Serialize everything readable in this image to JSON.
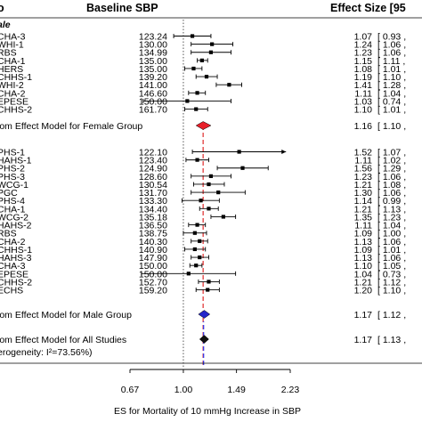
{
  "chart_data": {
    "type": "forest",
    "header": {
      "study": "o",
      "baseline": "Baseline SBP",
      "effect": "Effect Size [95"
    },
    "xlabel": "ES for Mortality of 10 mmHg Increase in SBP",
    "xticks": [
      "0.67",
      "1.00",
      "1.49",
      "2.23"
    ],
    "xtick_values": [
      0.67,
      1.0,
      1.49,
      2.23
    ],
    "log_scale": true,
    "reference_line": 1.0,
    "pooled_line": 1.16,
    "colors": {
      "female_diamond": "#e8202a",
      "male_diamond": "#2626c9",
      "overall_diamond": "#111111",
      "pooled_line": "#e23c3c",
      "pooled_line_alt": "#3a3ae8",
      "point": "#000000"
    },
    "groups": [
      {
        "label": "ale",
        "studies": [
          {
            "name": "CHA-3",
            "sbp": "123.24",
            "es": 1.07,
            "lo": 0.93,
            "hi": 1.23,
            "es_text": "1.07",
            "ci_text": "[ 0.93 ,"
          },
          {
            "name": "WHI-1",
            "sbp": "130.00",
            "es": 1.24,
            "lo": 1.06,
            "hi": 1.45,
            "es_text": "1.24",
            "ci_text": "[ 1.06 ,"
          },
          {
            "name": "RBS",
            "sbp": "134.99",
            "es": 1.23,
            "lo": 1.06,
            "hi": 1.43,
            "es_text": "1.23",
            "ci_text": "[ 1.06 ,"
          },
          {
            "name": "CHA-1",
            "sbp": "135.00",
            "es": 1.15,
            "lo": 1.11,
            "hi": 1.2,
            "es_text": "1.15",
            "ci_text": "[ 1.11 ,"
          },
          {
            "name": "HERS",
            "sbp": "135.00",
            "es": 1.08,
            "lo": 1.01,
            "hi": 1.15,
            "es_text": "1.08",
            "ci_text": "[ 1.01 ,"
          },
          {
            "name": "CHHS-1",
            "sbp": "139.20",
            "es": 1.19,
            "lo": 1.1,
            "hi": 1.29,
            "es_text": "1.19",
            "ci_text": "[ 1.10 ,"
          },
          {
            "name": "WHI-2",
            "sbp": "141.00",
            "es": 1.41,
            "lo": 1.28,
            "hi": 1.55,
            "es_text": "1.41",
            "ci_text": "[ 1.28 ,"
          },
          {
            "name": "CHA-2",
            "sbp": "146.60",
            "es": 1.11,
            "lo": 1.04,
            "hi": 1.18,
            "es_text": "1.11",
            "ci_text": "[ 1.04 ,"
          },
          {
            "name": "EPESE",
            "sbp": "150.00",
            "es": 1.03,
            "lo": 0.74,
            "hi": 1.43,
            "es_text": "1.03",
            "ci_text": "[ 0.74 ,"
          },
          {
            "name": "CHHS-2",
            "sbp": "161.70",
            "es": 1.1,
            "lo": 1.01,
            "hi": 1.2,
            "es_text": "1.10",
            "ci_text": "[ 1.01 ,"
          }
        ],
        "summary": {
          "label": "lom Effect Model for Female Group",
          "es": 1.16,
          "lo": 1.1,
          "hi": 1.23,
          "es_text": "1.16",
          "ci_text": "[ 1.10 ,",
          "color": "#e8202a"
        }
      },
      {
        "label": "",
        "studies": [
          {
            "name": "PHS-1",
            "sbp": "122.10",
            "es": 1.52,
            "lo": 1.07,
            "hi": 2.16,
            "es_text": "1.52",
            "ci_text": "[ 1.07 ,",
            "arrow": true
          },
          {
            "name": "HAHS-1",
            "sbp": "123.40",
            "es": 1.11,
            "lo": 1.02,
            "hi": 1.21,
            "es_text": "1.11",
            "ci_text": "[ 1.02 ,"
          },
          {
            "name": "PHS-2",
            "sbp": "124.90",
            "es": 1.56,
            "lo": 1.29,
            "hi": 1.89,
            "es_text": "1.56",
            "ci_text": "[ 1.29 ,"
          },
          {
            "name": "PHS-3",
            "sbp": "128.60",
            "es": 1.23,
            "lo": 1.06,
            "hi": 1.43,
            "es_text": "1.23",
            "ci_text": "[ 1.06 ,"
          },
          {
            "name": "WCG-1",
            "sbp": "130.54",
            "es": 1.21,
            "lo": 1.08,
            "hi": 1.36,
            "es_text": "1.21",
            "ci_text": "[ 1.08 ,"
          },
          {
            "name": "PGC",
            "sbp": "131.70",
            "es": 1.3,
            "lo": 1.06,
            "hi": 1.59,
            "es_text": "1.30",
            "ci_text": "[ 1.06 ,"
          },
          {
            "name": "PHS-4",
            "sbp": "133.30",
            "es": 1.14,
            "lo": 0.99,
            "hi": 1.31,
            "es_text": "1.14",
            "ci_text": "[ 0.99 ,"
          },
          {
            "name": "CHA-1",
            "sbp": "134.40",
            "es": 1.21,
            "lo": 1.13,
            "hi": 1.3,
            "es_text": "1.21",
            "ci_text": "[ 1.13 ,"
          },
          {
            "name": "WCG-2",
            "sbp": "135.18",
            "es": 1.35,
            "lo": 1.23,
            "hi": 1.48,
            "es_text": "1.35",
            "ci_text": "[ 1.23 ,"
          },
          {
            "name": "HAHS-2",
            "sbp": "136.50",
            "es": 1.11,
            "lo": 1.04,
            "hi": 1.18,
            "es_text": "1.11",
            "ci_text": "[ 1.04 ,"
          },
          {
            "name": "RBS",
            "sbp": "138.75",
            "es": 1.09,
            "lo": 1.0,
            "hi": 1.19,
            "es_text": "1.09",
            "ci_text": "[ 1.00 ,"
          },
          {
            "name": "CHA-2",
            "sbp": "140.30",
            "es": 1.13,
            "lo": 1.06,
            "hi": 1.2,
            "es_text": "1.13",
            "ci_text": "[ 1.06 ,"
          },
          {
            "name": "CHHS-1",
            "sbp": "140.90",
            "es": 1.09,
            "lo": 1.01,
            "hi": 1.18,
            "es_text": "1.09",
            "ci_text": "[ 1.01 ,"
          },
          {
            "name": "HAHS-3",
            "sbp": "147.90",
            "es": 1.13,
            "lo": 1.06,
            "hi": 1.21,
            "es_text": "1.13",
            "ci_text": "[ 1.06 ,"
          },
          {
            "name": "CHA-3",
            "sbp": "150.00",
            "es": 1.1,
            "lo": 1.05,
            "hi": 1.15,
            "es_text": "1.10",
            "ci_text": "[ 1.05 ,"
          },
          {
            "name": "EPESE",
            "sbp": "150.00",
            "es": 1.04,
            "lo": 0.73,
            "hi": 1.48,
            "es_text": "1.04",
            "ci_text": "[ 0.73 ,"
          },
          {
            "name": "CHHS-2",
            "sbp": "152.70",
            "es": 1.21,
            "lo": 1.12,
            "hi": 1.31,
            "es_text": "1.21",
            "ci_text": "[ 1.12 ,"
          },
          {
            "name": "ECHS",
            "sbp": "159.20",
            "es": 1.2,
            "lo": 1.1,
            "hi": 1.31,
            "es_text": "1.20",
            "ci_text": "[ 1.10 ,"
          }
        ],
        "summary": {
          "label": "lom Effect Model for Male Group",
          "es": 1.17,
          "lo": 1.12,
          "hi": 1.22,
          "es_text": "1.17",
          "ci_text": "[ 1.12 ,",
          "color": "#2626c9"
        }
      }
    ],
    "overall": {
      "label": "lom Effect Model for All Studies",
      "es": 1.17,
      "lo": 1.13,
      "hi": 1.21,
      "es_text": "1.17",
      "ci_text": "[ 1.13 ,",
      "color": "#111111"
    },
    "heterogeneity": "erogeneity: I²=73.56%)"
  }
}
